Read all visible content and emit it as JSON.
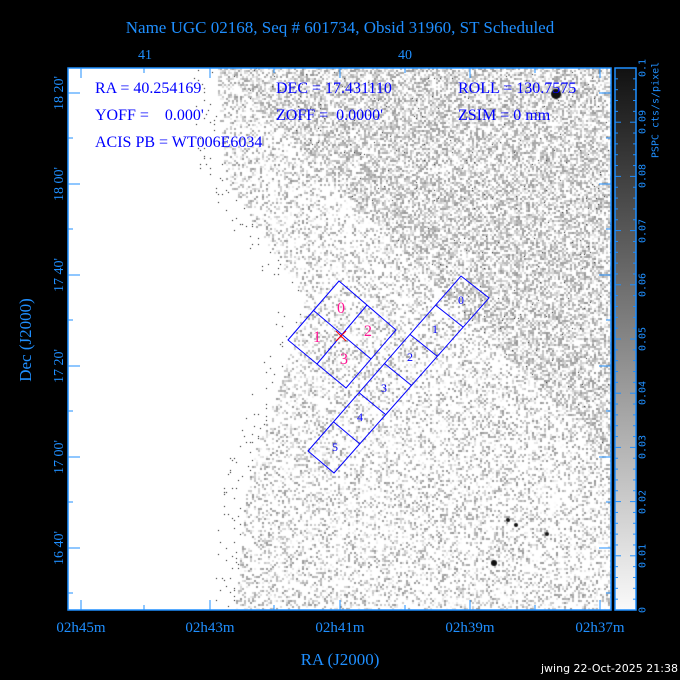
{
  "title": "Name UGC 02168, Seq # 601734, Obsid 31960, ST Scheduled",
  "info": {
    "ra": "RA = 40.254169",
    "dec": "DEC = 17.431110",
    "roll": "ROLL = 130.7575",
    "yoff": "YOFF =    0.000'",
    "zoff": "ZOFF =  0.0000'",
    "zsim": "ZSIM = 0 mm",
    "acis_pb": "ACIS PB = WT006E6034"
  },
  "chips": {
    "acis_i": [
      "0",
      "1",
      "2",
      "3"
    ],
    "acis_s": [
      "0",
      "1",
      "2",
      "3",
      "4",
      "5"
    ]
  },
  "colors": {
    "axis": "#1f8fff",
    "overlay": "#0000ff",
    "acis_i_labels": "#ff1493",
    "aimpoint": "#ff0000"
  },
  "footer": "jwing 22-Oct-2025 21:38",
  "chart_data": {
    "type": "heatmap",
    "xlabel": "RA (J2000)",
    "ylabel": "Dec (J2000)",
    "x_ticks": [
      "02h45m",
      "02h43m",
      "02h41m",
      "02h39m",
      "02h37m"
    ],
    "top_ticks": [
      "41",
      "40"
    ],
    "y_ticks": [
      "16 40'",
      "17 00'",
      "17 20'",
      "17 40'",
      "18 00'",
      "18 20'"
    ],
    "colorbar": {
      "label": "PSPC cts/s/pixel",
      "range": [
        0,
        0.1
      ],
      "ticks": [
        "0",
        "0.01",
        "0.02",
        "0.03",
        "0.04",
        "0.05",
        "0.06",
        "0.07",
        "0.08",
        "0.09",
        "0.1"
      ],
      "colormap": "white-to-black"
    }
  }
}
